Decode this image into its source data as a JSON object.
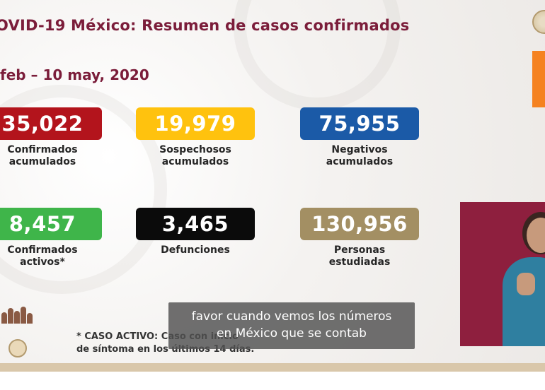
{
  "header": {
    "title": "OVID-19 México: Resumen de casos confirmados",
    "date_range": "feb – 10 may, 2020"
  },
  "stats": [
    {
      "value": "35,022",
      "label_line1": "Confirmados",
      "label_line2": "acumulados",
      "color": "#b3141c"
    },
    {
      "value": "19,979",
      "label_line1": "Sospechosos",
      "label_line2": "acumulados",
      "color": "#ffc20e"
    },
    {
      "value": "75,955",
      "label_line1": "Negativos",
      "label_line2": "acumulados",
      "color": "#1b5aa7"
    },
    {
      "value": "8,457",
      "label_line1": "Confirmados",
      "label_line2": "activos*",
      "color": "#3fb54a"
    },
    {
      "value": "3,465",
      "label_line1": "Defunciones",
      "label_line2": "",
      "color": "#0b0b0b"
    },
    {
      "value": "130,956",
      "label_line1": "Personas",
      "label_line2": "estudiadas",
      "color": "#a38f63"
    }
  ],
  "footnote": {
    "line1": "* CASO ACTIVO: Caso con                                        inicio",
    "line2": "de síntoma en los últimos 14 días."
  },
  "caption": {
    "line1": "favor cuando vemos los números",
    "line2": "en México que se contab"
  },
  "colors": {
    "title": "#7b1d3a",
    "orange_block": "#f58220",
    "interpreter_bg": "#8e1f3e"
  }
}
